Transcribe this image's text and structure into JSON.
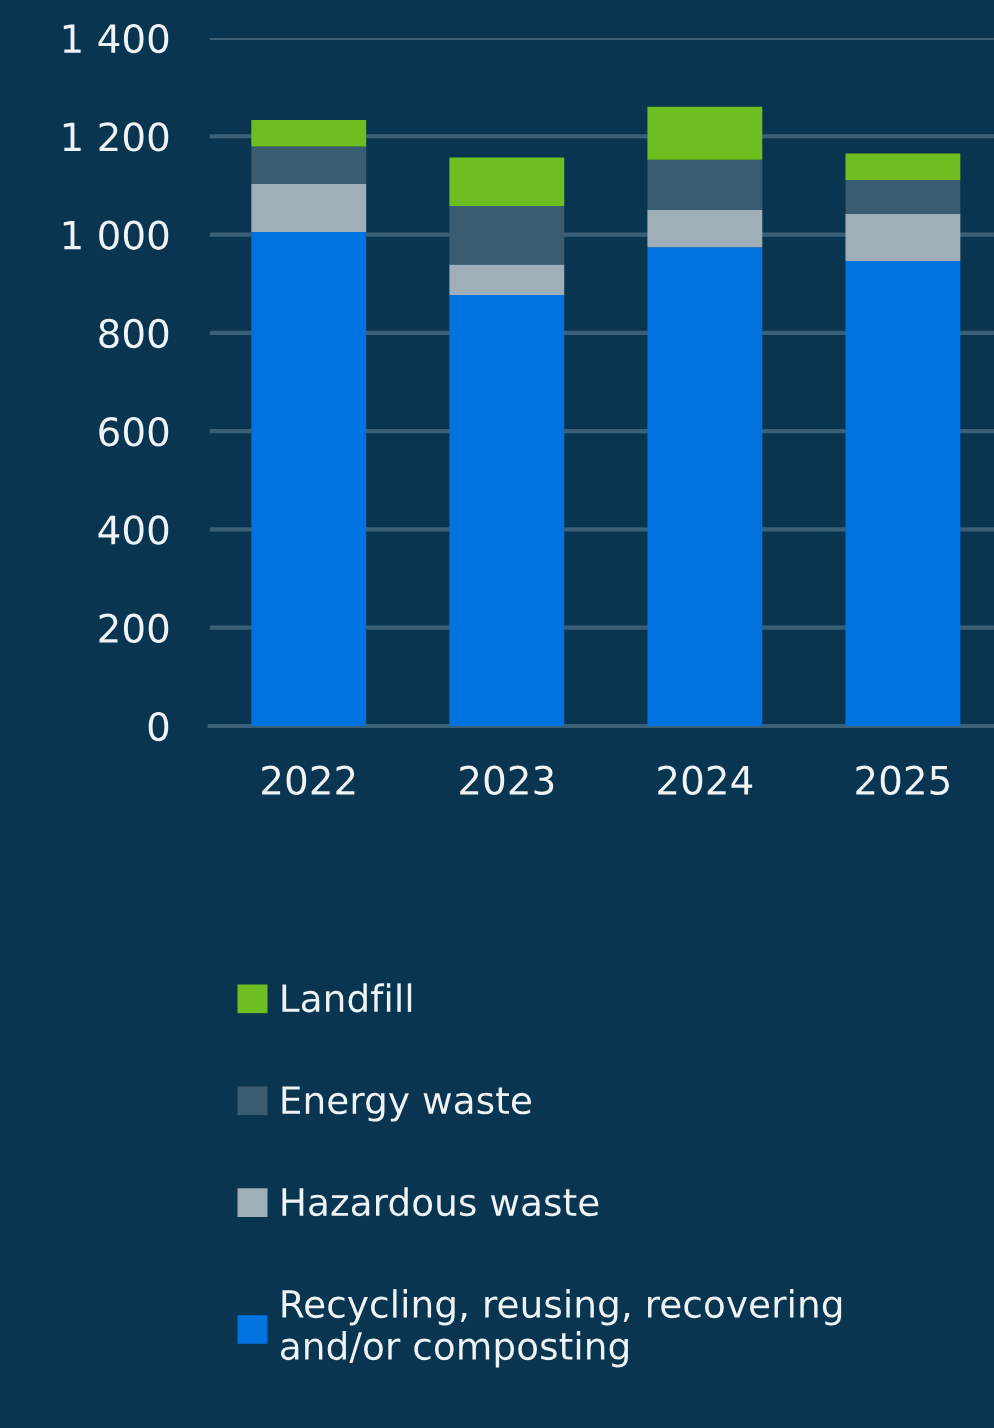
{
  "chart_data": {
    "type": "bar",
    "stacked": true,
    "categories": [
      "2022",
      "2023",
      "2024",
      "2025"
    ],
    "series": [
      {
        "name": "Recycling, reusing, recovering\nand/or composting",
        "color": "#0073e0",
        "values": [
          1005,
          877,
          974,
          946
        ]
      },
      {
        "name": "Hazardous waste",
        "color": "#9eafb9",
        "values": [
          98,
          62,
          76,
          96
        ]
      },
      {
        "name": "Energy waste",
        "color": "#3a5c70",
        "values": [
          76,
          119,
          102,
          69
        ]
      },
      {
        "name": "Landfill",
        "color": "#6ebe21",
        "values": [
          54,
          99,
          108,
          54
        ]
      }
    ],
    "ylim": [
      0,
      1400
    ],
    "yticks": [
      0,
      200,
      400,
      600,
      800,
      {
        "value": 1000,
        "label": "1 000"
      },
      {
        "value": 1200,
        "label": "1 200"
      },
      {
        "value": 1400,
        "label": "1 400"
      }
    ],
    "grid": "y",
    "legend": "bottom"
  }
}
